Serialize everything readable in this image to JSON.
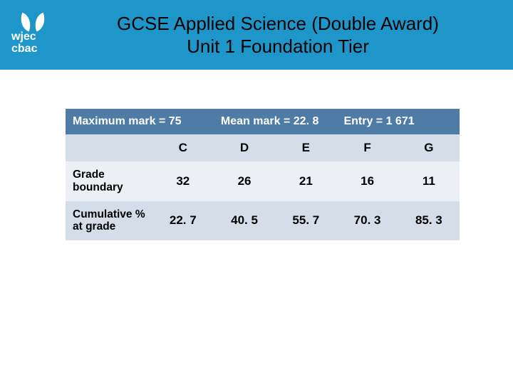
{
  "brand": {
    "line1": "wjec",
    "line2": "cbac"
  },
  "title": {
    "line1": "GCSE Applied Science (Double Award)",
    "line2": "Unit 1 Foundation Tier"
  },
  "table": {
    "stats": {
      "max_mark": "Maximum mark = 75",
      "mean_mark": "Mean mark = 22. 8",
      "entry": "Entry = 1 671"
    },
    "grade_headers": [
      "C",
      "D",
      "E",
      "F",
      "G"
    ],
    "rows": [
      {
        "label": "Grade boundary",
        "values": [
          "32",
          "26",
          "21",
          "16",
          "11"
        ]
      },
      {
        "label": "Cumulative % at grade",
        "values": [
          "22. 7",
          "40. 5",
          "55. 7",
          "70. 3",
          "85. 3"
        ]
      }
    ],
    "colors": {
      "stats_bg": "#4f7ba7",
      "stats_text": "#ffffff",
      "light_row": "#ecf0f5",
      "mid_row": "#d4dde8"
    }
  }
}
